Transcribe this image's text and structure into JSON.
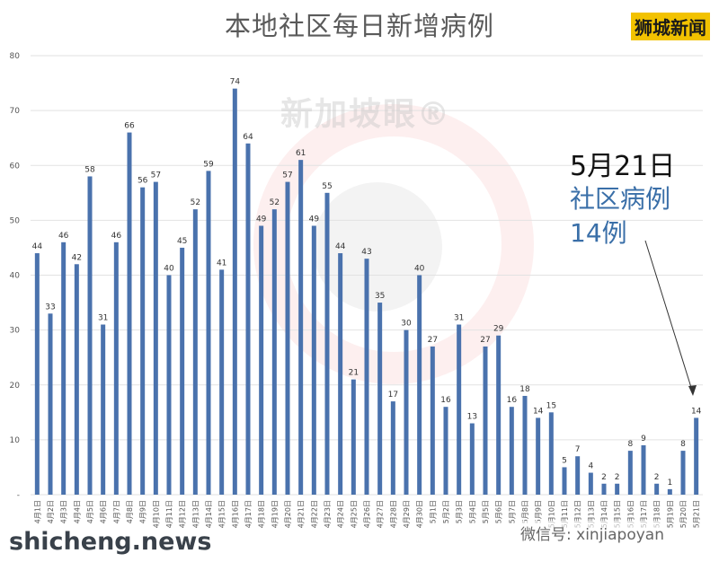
{
  "title": "本地社区每日新增病例",
  "brand": "狮城新闻",
  "watermark": "新加坡眼®",
  "annotation": {
    "date": "5月21日",
    "line1": "社区病例",
    "line2": "14例"
  },
  "footer": {
    "site": "shicheng.news",
    "wechat": "微信号: xinjiapoyan"
  },
  "colors": {
    "bar": "#4a72ad",
    "text": "#333333",
    "accent": "#3a6fa8"
  },
  "chart_data": {
    "type": "bar",
    "title": "本地社区每日新增病例",
    "ylim": [
      0,
      80
    ],
    "yticks": [
      0,
      10,
      20,
      30,
      40,
      50,
      60,
      70,
      80
    ],
    "grid": true,
    "categories": [
      "4月1日",
      "4月2日",
      "4月3日",
      "4月4日",
      "4月5日",
      "4月6日",
      "4月7日",
      "4月8日",
      "4月9日",
      "4月10日",
      "4月11日",
      "4月12日",
      "4月13日",
      "4月14日",
      "4月15日",
      "4月16日",
      "4月17日",
      "4月18日",
      "4月19日",
      "4月20日",
      "4月21日",
      "4月22日",
      "4月23日",
      "4月24日",
      "4月25日",
      "4月26日",
      "4月27日",
      "4月28日",
      "4月29日",
      "4月30日",
      "5月1日",
      "5月2日",
      "5月3日",
      "5月4日",
      "5月5日",
      "5月6日",
      "5月7日",
      "5月8日",
      "5月9日",
      "5月10日",
      "5月11日",
      "5月12日",
      "5月13日",
      "5月14日",
      "5月15日",
      "5月16日",
      "5月17日",
      "5月18日",
      "5月19日",
      "5月20日",
      "5月21日"
    ],
    "values": [
      44,
      33,
      46,
      42,
      58,
      31,
      46,
      66,
      56,
      57,
      40,
      45,
      52,
      59,
      41,
      74,
      64,
      49,
      52,
      57,
      61,
      49,
      55,
      44,
      21,
      43,
      35,
      17,
      30,
      40,
      27,
      16,
      31,
      13,
      27,
      29,
      16,
      18,
      14,
      15,
      5,
      7,
      4,
      2,
      2,
      8,
      9,
      2,
      1,
      8,
      14
    ]
  }
}
